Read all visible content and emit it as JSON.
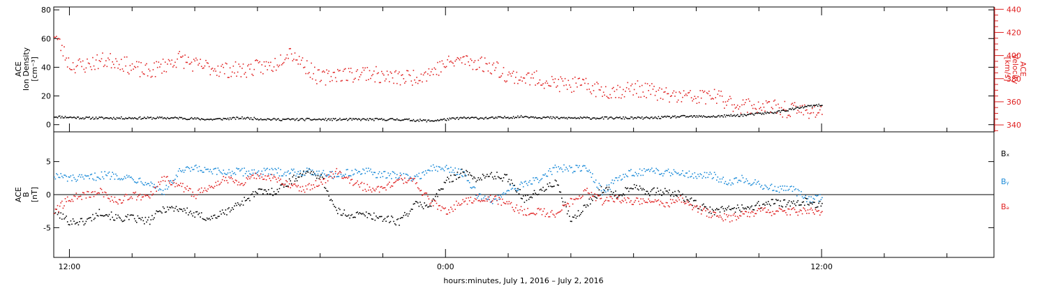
{
  "chart_data": [
    {
      "type": "scatter",
      "panel": "top",
      "ylabel_lines": [
        "ACE",
        "Ion Density",
        "[cm⁻³]"
      ],
      "ylim": [
        -5,
        82
      ],
      "yticks": [
        0,
        20,
        40,
        60,
        80
      ],
      "ylabel2_lines": [
        "ACE",
        "Velocity",
        "[km/s]"
      ],
      "ylim2": [
        334,
        442
      ],
      "yticks2": [
        340,
        360,
        380,
        400,
        420,
        440
      ],
      "xlim_hours": [
        11.5,
        41.5
      ],
      "series": [
        {
          "color": "#000000",
          "axis": "left",
          "x": [
            11.5,
            12.5,
            13.5,
            14.5,
            15.5,
            16.5,
            17.5,
            18.5,
            19.5,
            20.5,
            21.5,
            22.5,
            23.5,
            24.5,
            25.5,
            26.5,
            27.5,
            28.5,
            29.5,
            30.5,
            31.5,
            32.5,
            33.5,
            34.5,
            35.5,
            36.0
          ],
          "values": [
            6,
            5,
            5,
            5,
            5,
            4,
            5,
            4,
            4,
            4,
            4,
            4,
            3,
            5,
            5,
            6,
            5,
            5,
            5,
            5,
            6,
            6,
            7,
            9,
            13,
            14
          ]
        },
        {
          "color": "#e02020",
          "axis": "right",
          "x": [
            11.5,
            12.0,
            12.5,
            13.0,
            13.5,
            14.0,
            14.5,
            15.0,
            15.5,
            16.0,
            16.5,
            17.0,
            17.5,
            18.0,
            18.5,
            19.0,
            19.5,
            20.0,
            20.5,
            21.0,
            21.5,
            22.0,
            22.5,
            23.0,
            23.5,
            24.0,
            24.5,
            25.0,
            25.5,
            26.0,
            26.5,
            27.0,
            27.5,
            28.0,
            28.5,
            29.0,
            29.5,
            30.0,
            30.5,
            31.0,
            31.5,
            32.0,
            32.5,
            33.0,
            33.5,
            34.0,
            34.5,
            35.0,
            35.5,
            36.0
          ],
          "values": [
            420,
            392,
            392,
            396,
            396,
            390,
            386,
            392,
            398,
            392,
            390,
            388,
            388,
            390,
            392,
            405,
            392,
            380,
            385,
            384,
            386,
            382,
            381,
            382,
            386,
            393,
            397,
            394,
            391,
            383,
            381,
            380,
            376,
            375,
            374,
            370,
            370,
            372,
            370,
            366,
            365,
            364,
            366,
            360,
            357,
            357,
            355,
            353,
            353,
            352
          ]
        }
      ]
    },
    {
      "type": "scatter",
      "panel": "bottom",
      "ylabel_lines": [
        "ACE",
        "B",
        "[nT]"
      ],
      "ylim": [
        -9.5,
        9.5
      ],
      "yticks": [
        -5,
        0,
        5
      ],
      "zero_line": true,
      "xlim_hours": [
        11.5,
        41.5
      ],
      "series": [
        {
          "name": "Bₓ",
          "color": "#000000",
          "x": [
            11.5,
            12.0,
            12.5,
            13.0,
            13.5,
            14.0,
            14.5,
            15.0,
            15.5,
            16.0,
            16.5,
            17.0,
            17.5,
            18.0,
            18.5,
            19.0,
            19.5,
            20.0,
            20.5,
            21.0,
            21.5,
            22.0,
            22.5,
            23.0,
            23.5,
            24.0,
            24.5,
            25.0,
            25.5,
            26.0,
            26.5,
            27.0,
            27.5,
            28.0,
            28.5,
            29.0,
            29.5,
            30.0,
            30.5,
            31.0,
            31.5,
            32.0,
            32.5,
            33.0,
            33.5,
            34.0,
            34.5,
            35.0,
            35.5,
            36.0
          ],
          "values": [
            -2.5,
            -4.0,
            -4.0,
            -2.5,
            -3.5,
            -3.5,
            -4.0,
            -2.0,
            -2.0,
            -3.0,
            -3.5,
            -2.5,
            -1.0,
            0.5,
            0.5,
            2.0,
            3.5,
            3.0,
            -2.5,
            -3.0,
            -3.0,
            -3.5,
            -4.0,
            -1.5,
            -1.5,
            2.0,
            3.5,
            2.5,
            3.0,
            2.5,
            -0.5,
            0.5,
            2.0,
            -4.0,
            -1.5,
            1.0,
            0.0,
            1.5,
            0.5,
            0.5,
            0.0,
            -1.5,
            -2.5,
            -2.0,
            -2.0,
            -1.5,
            -1.0,
            -1.5,
            -1.0,
            -1.5
          ]
        },
        {
          "name": "Bᵧ",
          "color": "#1a8ad8",
          "x": [
            11.5,
            12.0,
            12.5,
            13.0,
            13.5,
            14.0,
            14.5,
            15.0,
            15.5,
            16.0,
            16.5,
            17.0,
            17.5,
            18.0,
            18.5,
            19.0,
            19.5,
            20.0,
            20.5,
            21.0,
            21.5,
            22.0,
            22.5,
            23.0,
            23.5,
            24.0,
            24.5,
            25.0,
            25.5,
            26.0,
            26.5,
            27.0,
            27.5,
            28.0,
            28.5,
            29.0,
            29.5,
            30.0,
            30.5,
            31.0,
            31.5,
            32.0,
            32.5,
            33.0,
            33.5,
            34.0,
            34.5,
            35.0,
            35.5,
            36.0
          ],
          "values": [
            3.0,
            2.5,
            2.5,
            3.0,
            3.0,
            2.5,
            2.0,
            0.5,
            3.5,
            4.0,
            3.5,
            3.5,
            3.5,
            3.5,
            3.5,
            3.5,
            3.5,
            3.5,
            3.0,
            3.5,
            3.5,
            3.0,
            3.0,
            2.5,
            4.0,
            4.0,
            3.5,
            0.0,
            -1.0,
            1.0,
            1.5,
            2.5,
            4.0,
            4.0,
            4.0,
            0.5,
            2.5,
            3.5,
            3.5,
            3.5,
            3.5,
            3.0,
            3.0,
            2.0,
            2.5,
            1.5,
            1.0,
            1.0,
            -0.5,
            -0.5
          ]
        },
        {
          "name": "Bₔ",
          "color": "#e02020",
          "x": [
            11.5,
            12.0,
            12.5,
            13.0,
            13.5,
            14.0,
            14.5,
            15.0,
            15.5,
            16.0,
            16.5,
            17.0,
            17.5,
            18.0,
            18.5,
            19.0,
            19.5,
            20.0,
            20.5,
            21.0,
            21.5,
            22.0,
            22.5,
            23.0,
            23.5,
            24.0,
            24.5,
            25.0,
            25.5,
            26.0,
            26.5,
            27.0,
            27.5,
            28.0,
            28.5,
            29.0,
            29.5,
            30.0,
            30.5,
            31.0,
            31.5,
            32.0,
            32.5,
            33.0,
            33.5,
            34.0,
            34.5,
            35.0,
            35.5,
            36.0
          ],
          "values": [
            -2.5,
            -0.5,
            0.0,
            0.5,
            -1.0,
            0.0,
            -0.5,
            2.5,
            1.5,
            0.0,
            1.5,
            2.5,
            2.0,
            3.0,
            2.5,
            1.5,
            1.0,
            2.0,
            3.5,
            2.0,
            1.0,
            1.0,
            2.5,
            2.0,
            -1.0,
            -2.5,
            -1.0,
            -0.5,
            -0.5,
            -1.5,
            -2.5,
            -2.5,
            -3.0,
            -1.0,
            0.5,
            -1.0,
            -0.5,
            -1.0,
            -0.5,
            -1.5,
            -0.5,
            -2.0,
            -3.0,
            -3.5,
            -3.0,
            -2.5,
            -2.5,
            -2.5,
            -2.5,
            -2.5
          ]
        }
      ]
    }
  ],
  "x_axis": {
    "tick_labels": [
      {
        "hour": 12,
        "label": "12:00"
      },
      {
        "hour": 24,
        "label": "0:00"
      },
      {
        "hour": 36,
        "label": "12:00"
      }
    ],
    "minor_tick_hours": [
      14,
      16,
      18,
      20,
      22,
      26,
      28,
      30,
      32,
      34,
      38,
      40
    ],
    "xlabel": "hours:minutes,  July  1, 2016 – July  2, 2016"
  }
}
